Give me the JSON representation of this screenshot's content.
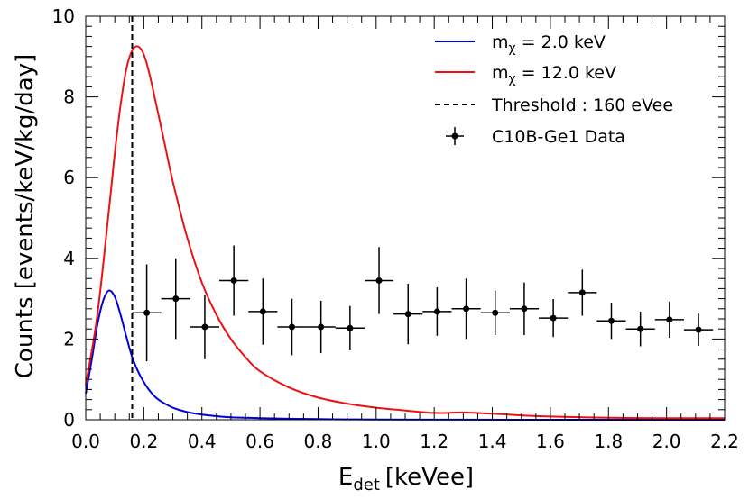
{
  "chart_data": {
    "type": "line",
    "xlabel_main": "E",
    "xlabel_sub": "det",
    "xlabel_unit": "[keVee]",
    "ylabel": "Counts [events/keV/kg/day]",
    "xlim": [
      0.0,
      2.2
    ],
    "ylim": [
      0,
      10
    ],
    "x_major_ticks": [
      0.0,
      0.2,
      0.4,
      0.6,
      0.8,
      1.0,
      1.2,
      1.4,
      1.6,
      1.8,
      2.0,
      2.2
    ],
    "x_tick_labels": [
      "0.0",
      "0.2",
      "0.4",
      "0.6",
      "0.8",
      "1.0",
      "1.2",
      "1.4",
      "1.6",
      "1.8",
      "2.0",
      "2.2"
    ],
    "y_major_ticks": [
      0,
      2,
      4,
      6,
      8,
      10
    ],
    "y_tick_labels": [
      "0",
      "2",
      "4",
      "6",
      "8",
      "10"
    ],
    "grid": false,
    "legend_position": "top-right",
    "series": [
      {
        "name": "m_chi = 2.0 keV",
        "legend_main": "m",
        "legend_sub": "χ",
        "legend_rest": " = 2.0 keV",
        "color": "#0000dd",
        "x": [
          0.0,
          0.02,
          0.04,
          0.06,
          0.08,
          0.1,
          0.12,
          0.14,
          0.16,
          0.18,
          0.2,
          0.22,
          0.25,
          0.3,
          0.35,
          0.4,
          0.45,
          0.5,
          0.6,
          0.7,
          0.8,
          0.9,
          1.0,
          1.2,
          1.5,
          2.2
        ],
        "y": [
          0.65,
          1.45,
          2.35,
          2.95,
          3.2,
          3.05,
          2.6,
          2.05,
          1.55,
          1.2,
          0.93,
          0.72,
          0.5,
          0.3,
          0.19,
          0.13,
          0.09,
          0.06,
          0.04,
          0.025,
          0.015,
          0.01,
          0.006,
          0.003,
          0.001,
          0.0
        ]
      },
      {
        "name": "m_chi = 12.0 keV",
        "legend_main": "m",
        "legend_sub": "χ",
        "legend_rest": " = 12.0 keV",
        "color": "#ee1111",
        "x": [
          0.0,
          0.04,
          0.08,
          0.1,
          0.12,
          0.14,
          0.16,
          0.18,
          0.2,
          0.22,
          0.24,
          0.27,
          0.3,
          0.35,
          0.4,
          0.45,
          0.5,
          0.55,
          0.6,
          0.7,
          0.8,
          0.9,
          1.0,
          1.1,
          1.2,
          1.3,
          1.4,
          1.5,
          1.6,
          1.8,
          2.0,
          2.2
        ],
        "y": [
          0.85,
          2.6,
          5.2,
          6.6,
          7.8,
          8.7,
          9.15,
          9.25,
          9.05,
          8.55,
          7.9,
          6.9,
          5.9,
          4.5,
          3.4,
          2.6,
          2.0,
          1.55,
          1.2,
          0.8,
          0.55,
          0.4,
          0.3,
          0.23,
          0.17,
          0.18,
          0.15,
          0.11,
          0.08,
          0.05,
          0.04,
          0.04
        ]
      }
    ],
    "threshold": {
      "legend_label": "Threshold : 160 eVee",
      "x": 0.16,
      "color": "#000000"
    },
    "data_series": {
      "legend_label": "C10B-Ge1 Data",
      "color": "#000000",
      "points": [
        {
          "x": 0.21,
          "y": 2.65,
          "xerr": 0.05,
          "yerr": 1.2
        },
        {
          "x": 0.31,
          "y": 3.0,
          "xerr": 0.05,
          "yerr": 1.0
        },
        {
          "x": 0.41,
          "y": 2.3,
          "xerr": 0.05,
          "yerr": 0.8
        },
        {
          "x": 0.51,
          "y": 3.45,
          "xerr": 0.05,
          "yerr": 0.87
        },
        {
          "x": 0.61,
          "y": 2.68,
          "xerr": 0.05,
          "yerr": 0.82
        },
        {
          "x": 0.71,
          "y": 2.3,
          "xerr": 0.05,
          "yerr": 0.7
        },
        {
          "x": 0.81,
          "y": 2.3,
          "xerr": 0.05,
          "yerr": 0.65
        },
        {
          "x": 0.91,
          "y": 2.27,
          "xerr": 0.05,
          "yerr": 0.55
        },
        {
          "x": 1.01,
          "y": 3.45,
          "xerr": 0.05,
          "yerr": 0.83
        },
        {
          "x": 1.11,
          "y": 2.62,
          "xerr": 0.05,
          "yerr": 0.75
        },
        {
          "x": 1.21,
          "y": 2.68,
          "xerr": 0.05,
          "yerr": 0.6
        },
        {
          "x": 1.31,
          "y": 2.75,
          "xerr": 0.05,
          "yerr": 0.75
        },
        {
          "x": 1.41,
          "y": 2.65,
          "xerr": 0.05,
          "yerr": 0.55
        },
        {
          "x": 1.51,
          "y": 2.75,
          "xerr": 0.05,
          "yerr": 0.65
        },
        {
          "x": 1.61,
          "y": 2.52,
          "xerr": 0.05,
          "yerr": 0.47
        },
        {
          "x": 1.71,
          "y": 3.15,
          "xerr": 0.05,
          "yerr": 0.57
        },
        {
          "x": 1.81,
          "y": 2.45,
          "xerr": 0.05,
          "yerr": 0.45
        },
        {
          "x": 1.91,
          "y": 2.25,
          "xerr": 0.05,
          "yerr": 0.43
        },
        {
          "x": 2.01,
          "y": 2.48,
          "xerr": 0.05,
          "yerr": 0.45
        },
        {
          "x": 2.11,
          "y": 2.23,
          "xerr": 0.05,
          "yerr": 0.4
        }
      ]
    }
  }
}
